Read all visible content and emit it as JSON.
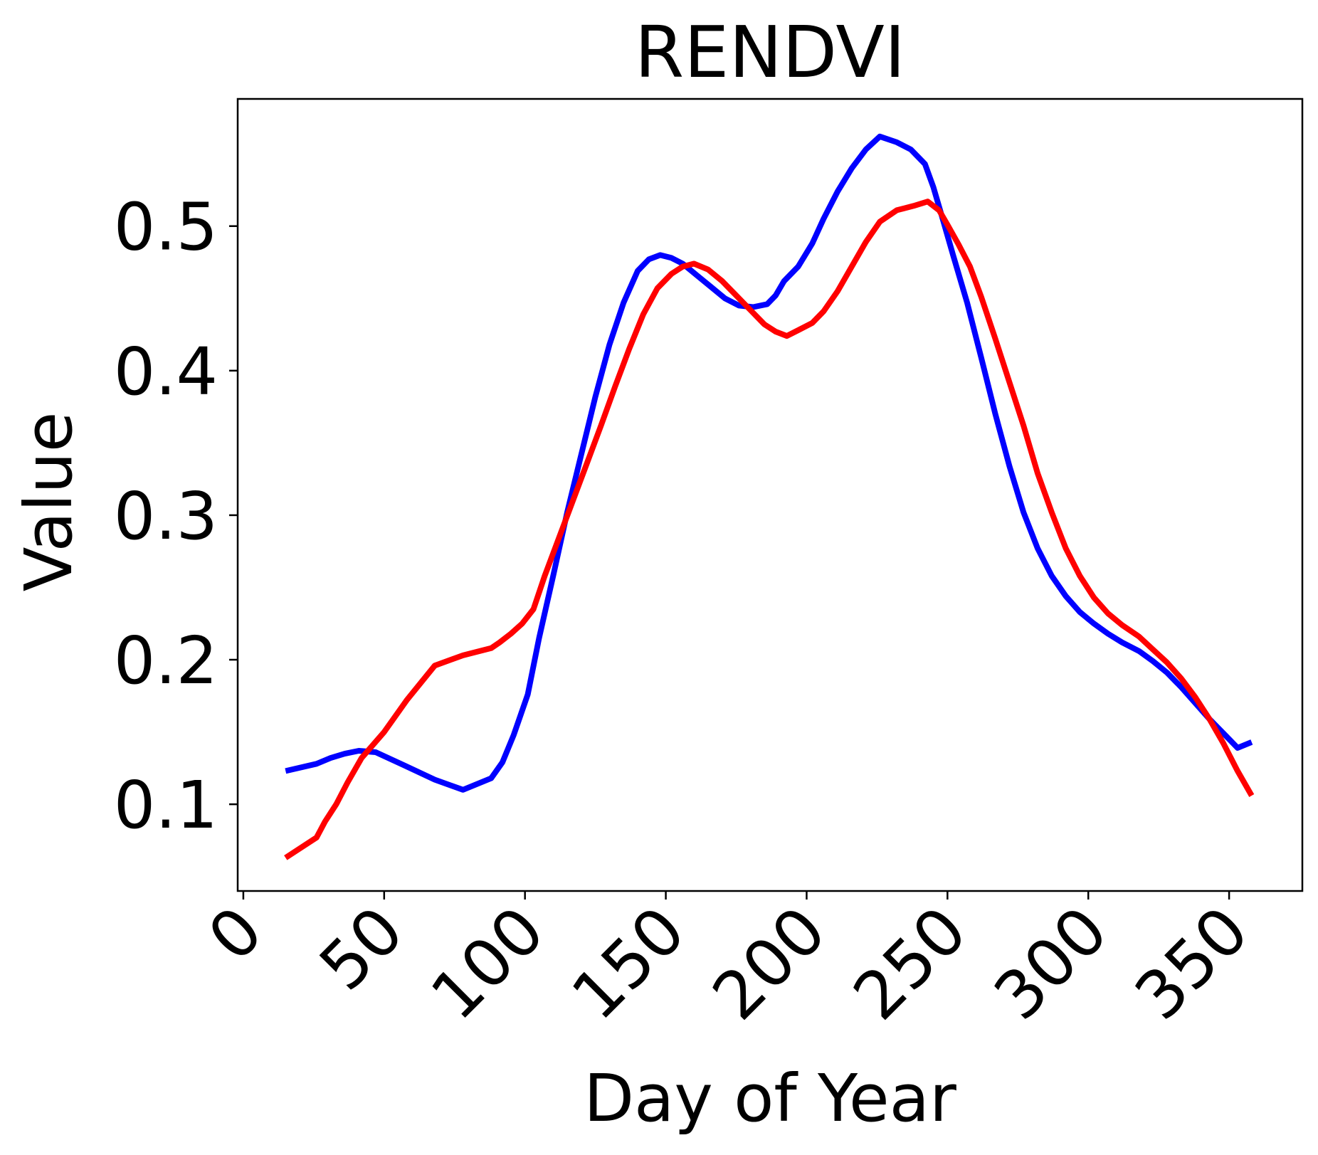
{
  "chart_data": {
    "type": "line",
    "title": "RENDVI",
    "xlabel": "Day of Year",
    "ylabel": "Value",
    "xlim": [
      -2,
      376
    ],
    "ylim": [
      0.04,
      0.588
    ],
    "xticks": [
      0,
      50,
      100,
      150,
      200,
      250,
      300,
      350
    ],
    "xtick_labels": [
      "0",
      "50",
      "100",
      "150",
      "200",
      "250",
      "300",
      "350"
    ],
    "yticks": [
      0.1,
      0.2,
      0.3,
      0.4,
      0.5
    ],
    "ytick_labels": [
      "0.1",
      "0.2",
      "0.3",
      "0.4",
      "0.5"
    ],
    "xtick_rotation": 45,
    "grid": false,
    "legend": null,
    "series": [
      {
        "color": "#0000ff",
        "x": [
          15,
          26,
          31,
          36,
          41,
          47,
          57,
          68,
          78,
          88,
          92,
          96,
          101,
          105,
          110,
          115,
          120,
          125,
          130,
          135,
          140,
          144,
          148,
          152,
          156,
          161,
          166,
          171,
          176,
          181,
          186,
          189,
          192,
          197,
          202,
          206,
          211,
          216,
          221,
          226,
          232,
          237,
          242,
          245,
          248,
          252,
          257,
          262,
          267,
          272,
          277,
          282,
          287,
          292,
          297,
          302,
          307,
          312,
          318,
          323,
          328,
          333,
          338,
          343,
          348,
          353,
          358
        ],
        "y": [
          0.123,
          0.128,
          0.132,
          0.135,
          0.137,
          0.136,
          0.127,
          0.117,
          0.11,
          0.118,
          0.129,
          0.148,
          0.176,
          0.215,
          0.258,
          0.302,
          0.342,
          0.382,
          0.418,
          0.447,
          0.469,
          0.477,
          0.48,
          0.478,
          0.474,
          0.466,
          0.458,
          0.45,
          0.445,
          0.444,
          0.446,
          0.452,
          0.462,
          0.472,
          0.488,
          0.505,
          0.524,
          0.54,
          0.553,
          0.562,
          0.558,
          0.553,
          0.543,
          0.527,
          0.507,
          0.48,
          0.447,
          0.409,
          0.37,
          0.334,
          0.302,
          0.277,
          0.258,
          0.244,
          0.233,
          0.225,
          0.218,
          0.212,
          0.206,
          0.199,
          0.191,
          0.181,
          0.17,
          0.159,
          0.149,
          0.139,
          0.143
        ]
      },
      {
        "color": "#ff0000",
        "x": [
          15,
          26,
          29,
          33,
          37,
          42,
          50,
          58,
          68,
          78,
          88,
          91,
          95,
          99,
          103,
          107,
          112,
          117,
          122,
          127,
          132,
          137,
          142,
          147,
          152,
          156,
          160,
          165,
          170,
          175,
          180,
          185,
          189,
          193,
          197,
          202,
          206,
          211,
          216,
          221,
          226,
          232,
          238,
          243,
          247,
          250,
          254,
          258,
          262,
          267,
          272,
          277,
          282,
          287,
          292,
          297,
          302,
          307,
          312,
          318,
          323,
          328,
          333,
          338,
          343,
          348,
          353,
          358
        ],
        "y": [
          0.063,
          0.077,
          0.088,
          0.1,
          0.115,
          0.132,
          0.15,
          0.172,
          0.196,
          0.203,
          0.208,
          0.212,
          0.218,
          0.225,
          0.235,
          0.258,
          0.284,
          0.31,
          0.336,
          0.362,
          0.389,
          0.415,
          0.439,
          0.457,
          0.467,
          0.472,
          0.474,
          0.47,
          0.462,
          0.452,
          0.442,
          0.432,
          0.427,
          0.424,
          0.428,
          0.433,
          0.441,
          0.455,
          0.472,
          0.489,
          0.503,
          0.511,
          0.514,
          0.517,
          0.511,
          0.501,
          0.487,
          0.472,
          0.451,
          0.422,
          0.392,
          0.362,
          0.329,
          0.302,
          0.277,
          0.258,
          0.243,
          0.232,
          0.224,
          0.216,
          0.207,
          0.198,
          0.187,
          0.174,
          0.159,
          0.142,
          0.123,
          0.106
        ]
      }
    ]
  }
}
